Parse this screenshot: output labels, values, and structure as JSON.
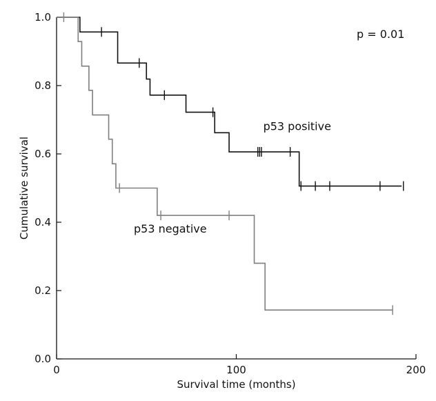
{
  "chart_data": {
    "type": "line",
    "chart_style": "kaplan-meier step survival curves with censoring tick marks",
    "xlabel": "Survival time (months)",
    "ylabel": "Cumulative survival",
    "xlim": [
      0,
      200
    ],
    "ylim": [
      0.0,
      1.0
    ],
    "x_ticks": [
      0,
      100,
      200
    ],
    "x_tick_labels": [
      "0",
      "100",
      "200"
    ],
    "y_ticks": [
      0.0,
      0.2,
      0.4,
      0.6,
      0.8,
      1.0
    ],
    "y_tick_labels": [
      "0.0",
      "0.2",
      "0.4",
      "0.6",
      "0.8",
      "1.0"
    ],
    "grid": false,
    "annotations": [
      {
        "id": "pvalue",
        "text": "p = 0.01",
        "x": 167,
        "y": 0.95
      },
      {
        "id": "positive-label",
        "text": "p53 positive",
        "x": 115,
        "y": 0.68
      },
      {
        "id": "negative-label",
        "text": "p53 negative",
        "x": 43,
        "y": 0.38
      }
    ],
    "series": [
      {
        "label_annotation": "p53 positive",
        "color": "#111111",
        "steps": [
          [
            0,
            1.0
          ],
          [
            13,
            0.957
          ],
          [
            34,
            0.866
          ],
          [
            50,
            0.819
          ],
          [
            52,
            0.772
          ],
          [
            72,
            0.722
          ],
          [
            88,
            0.662
          ],
          [
            96,
            0.606
          ],
          [
            135,
            0.506
          ],
          [
            192,
            0.506
          ]
        ],
        "censored": [
          [
            25,
            0.957
          ],
          [
            46,
            0.866
          ],
          [
            60,
            0.772
          ],
          [
            87,
            0.722
          ],
          [
            112,
            0.606
          ],
          [
            113,
            0.606
          ],
          [
            114,
            0.606
          ],
          [
            130,
            0.606
          ],
          [
            136,
            0.506
          ],
          [
            144,
            0.506
          ],
          [
            152,
            0.506
          ],
          [
            180,
            0.506
          ],
          [
            193,
            0.506
          ]
        ]
      },
      {
        "label_annotation": "p53 negative",
        "color": "#7f7f7f",
        "steps": [
          [
            0,
            1.0
          ],
          [
            12,
            0.929
          ],
          [
            14,
            0.857
          ],
          [
            18,
            0.786
          ],
          [
            20,
            0.714
          ],
          [
            29,
            0.643
          ],
          [
            31,
            0.571
          ],
          [
            33,
            0.5
          ],
          [
            56,
            0.42
          ],
          [
            110,
            0.28
          ],
          [
            116,
            0.143
          ],
          [
            187,
            0.143
          ]
        ],
        "censored": [
          [
            4,
            1.0
          ],
          [
            35,
            0.5
          ],
          [
            58,
            0.42
          ],
          [
            96,
            0.42
          ],
          [
            187,
            0.143
          ]
        ]
      }
    ]
  }
}
